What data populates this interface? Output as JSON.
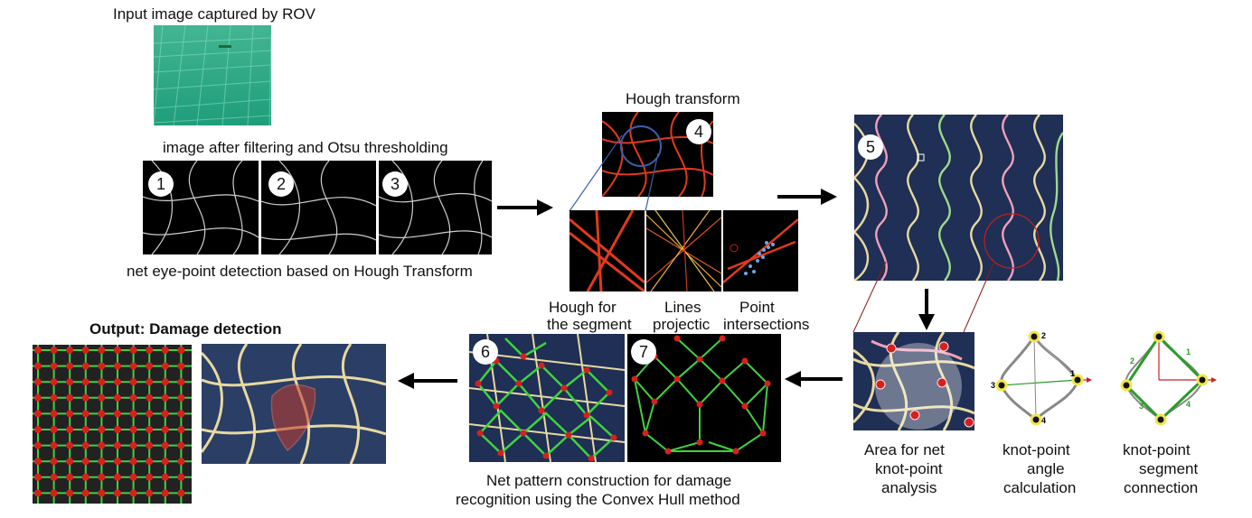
{
  "labels": {
    "input_title": "Input image captured by ROV",
    "filter_title": "image after filtering and Otsu thresholding",
    "eyepoint_caption": "net eye-point detection based on Hough Transform",
    "hough_title": "Hough transform",
    "hough_segment_line1": "Hough for",
    "hough_segment_line2": "the segment",
    "lines_line1": "Lines",
    "lines_line2": "projectic",
    "points_line1": "Point",
    "points_line2": "intersections",
    "output_title": "Output: Damage detection",
    "pattern_line1": "Net pattern construction for damage",
    "pattern_line2": "recognition using the Convex Hull method",
    "area_line1": "Area for net",
    "area_line2": "knot-point",
    "area_line3": "analysis",
    "angle_line1": "knot-point",
    "angle_line2": "angle",
    "angle_line3": "calculation",
    "segment_line1": "knot-point",
    "segment_line2": "segment",
    "segment_line3": "connection"
  },
  "badges": {
    "b1": "1",
    "b2": "2",
    "b3": "3",
    "b4": "4",
    "b5": "5",
    "b6": "6",
    "b7": "7"
  },
  "knot_angle_labels": {
    "top": "2",
    "right": "1",
    "left": "3",
    "bottom": "4"
  },
  "knot_segment_labels": {
    "s1": "1",
    "s2": "2",
    "s3": "3",
    "s4": "4"
  },
  "colors": {
    "net_water": "#2fae86",
    "net_dark": "#1b2a4a",
    "hough_red": "#e03a1e",
    "pattern_green": "#3fd23f",
    "knot_red": "#d62020",
    "knot_yellow": "#f2e64a",
    "damage": "#c0392b"
  }
}
